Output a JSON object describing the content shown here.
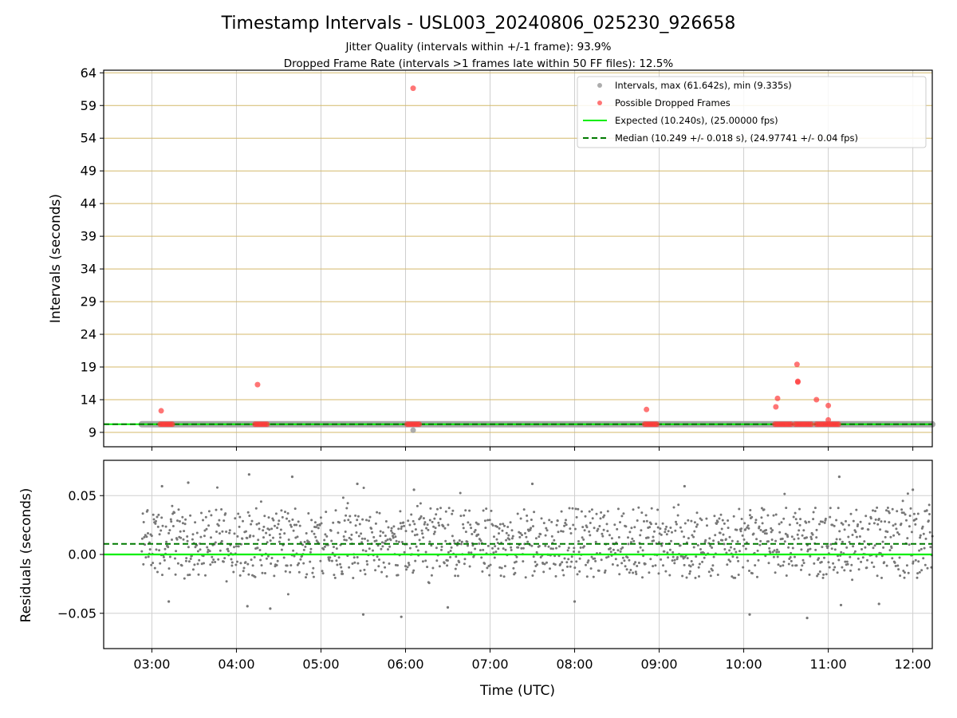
{
  "chart_data": [
    {
      "type": "scatter",
      "panel": "intervals",
      "title": "Timestamp Intervals - USL003_20240806_025230_926658",
      "subtitle_lines": [
        "Jitter Quality (intervals within +/-1 frame): 93.9%",
        "Dropped Frame Rate (intervals >1 frames late within 50 FF files): 12.5%"
      ],
      "ylabel": "Intervals (seconds)",
      "xlabel": "",
      "xlim": [
        2.43,
        12.23
      ],
      "ylim": [
        6.8,
        64.4
      ],
      "y_ticks": [
        9,
        14,
        19,
        24,
        29,
        34,
        39,
        44,
        49,
        54,
        59,
        64
      ],
      "y_tick_labels": [
        "9",
        "14",
        "19",
        "24",
        "29",
        "34",
        "39",
        "44",
        "49",
        "54",
        "59",
        "64"
      ],
      "x_ticks": [
        3,
        4,
        5,
        6,
        7,
        8,
        9,
        10,
        11,
        12
      ],
      "grid": true,
      "legend_position": "top-right",
      "legend": [
        {
          "label": "Intervals, max (61.642s), min (9.335s)",
          "kind": "marker",
          "color": "#999999"
        },
        {
          "label": "Possible Dropped Frames",
          "kind": "marker",
          "color": "#ff3b3b"
        },
        {
          "label": "Expected (10.240s), (25.00000 fps)",
          "kind": "line",
          "color": "#00ee00"
        },
        {
          "label": "Median (10.249 +/- 0.018 s), (24.97741 +/- 0.04 fps)",
          "kind": "dashed",
          "color": "#007a00"
        }
      ],
      "expected_line": 10.24,
      "median_line": 10.249,
      "interval_band": {
        "x": [
          2.88,
          12.23
        ],
        "y": 10.24
      },
      "dropped_frame_clusters": [
        {
          "x": [
            3.1,
            3.25
          ],
          "y": 10.24
        },
        {
          "x": [
            4.22,
            4.38
          ],
          "y": 10.24
        },
        {
          "x": [
            6.02,
            6.18
          ],
          "y": 10.24
        },
        {
          "x": [
            8.83,
            8.98
          ],
          "y": 10.24
        },
        {
          "x": [
            10.37,
            10.56
          ],
          "y": 10.24
        },
        {
          "x": [
            10.61,
            10.8
          ],
          "y": 10.24
        },
        {
          "x": [
            10.86,
            11.13
          ],
          "y": 10.24
        }
      ],
      "interval_points_outliers": [
        {
          "x": 6.09,
          "y": 9.335
        }
      ],
      "dropped_frame_points": [
        {
          "x": 3.11,
          "y": 12.3
        },
        {
          "x": 4.25,
          "y": 16.3
        },
        {
          "x": 6.09,
          "y": 61.642
        },
        {
          "x": 8.85,
          "y": 12.5
        },
        {
          "x": 10.38,
          "y": 12.9
        },
        {
          "x": 10.4,
          "y": 14.2
        },
        {
          "x": 10.63,
          "y": 19.4
        },
        {
          "x": 10.64,
          "y": 16.7
        },
        {
          "x": 10.64,
          "y": 16.8
        },
        {
          "x": 10.86,
          "y": 14.0
        },
        {
          "x": 11.0,
          "y": 13.1
        },
        {
          "x": 11.0,
          "y": 10.9
        }
      ],
      "colors": {
        "intervals": "#999999",
        "dropped": "#ff3b3b",
        "expected": "#00ee00",
        "median": "#007a00",
        "ygrid": "#d4b96a",
        "xgrid": "#cfcfcf"
      }
    },
    {
      "type": "scatter",
      "panel": "residuals",
      "ylabel": "Residuals (seconds)",
      "xlabel": "Time (UTC)",
      "xlim": [
        2.43,
        12.23
      ],
      "ylim": [
        -0.08,
        0.08
      ],
      "y_ticks": [
        -0.05,
        0.0,
        0.05
      ],
      "y_tick_labels": [
        "−0.05",
        "0.00",
        "0.05"
      ],
      "x_ticks": [
        3,
        4,
        5,
        6,
        7,
        8,
        9,
        10,
        11,
        12
      ],
      "x_tick_labels": [
        "03:00",
        "04:00",
        "05:00",
        "06:00",
        "07:00",
        "08:00",
        "09:00",
        "10:00",
        "11:00",
        "12:00"
      ],
      "grid": true,
      "expected_line": 0.0,
      "median_line": 0.009,
      "residual_x_range": [
        2.88,
        12.23
      ],
      "residual_typical_spread": 0.03,
      "residual_typical_center": 0.009,
      "residual_extremes": [
        {
          "x": 3.12,
          "y": 0.058
        },
        {
          "x": 3.43,
          "y": 0.061
        },
        {
          "x": 4.15,
          "y": 0.068
        },
        {
          "x": 4.66,
          "y": 0.066
        },
        {
          "x": 5.43,
          "y": 0.06
        },
        {
          "x": 6.1,
          "y": 0.055
        },
        {
          "x": 7.5,
          "y": 0.06
        },
        {
          "x": 9.3,
          "y": 0.058
        },
        {
          "x": 11.13,
          "y": 0.066
        },
        {
          "x": 12.0,
          "y": 0.055
        },
        {
          "x": 4.13,
          "y": -0.044
        },
        {
          "x": 4.4,
          "y": -0.046
        },
        {
          "x": 5.5,
          "y": -0.051
        },
        {
          "x": 5.95,
          "y": -0.053
        },
        {
          "x": 6.5,
          "y": -0.045
        },
        {
          "x": 10.07,
          "y": -0.051
        },
        {
          "x": 10.75,
          "y": -0.054
        },
        {
          "x": 11.15,
          "y": -0.043
        },
        {
          "x": 11.6,
          "y": -0.042
        },
        {
          "x": 3.2,
          "y": -0.04
        },
        {
          "x": 8.0,
          "y": -0.04
        }
      ],
      "colors": {
        "residuals": "#777777",
        "expected": "#00ee00",
        "median": "#007a00",
        "grid": "#cfcfcf"
      }
    }
  ]
}
